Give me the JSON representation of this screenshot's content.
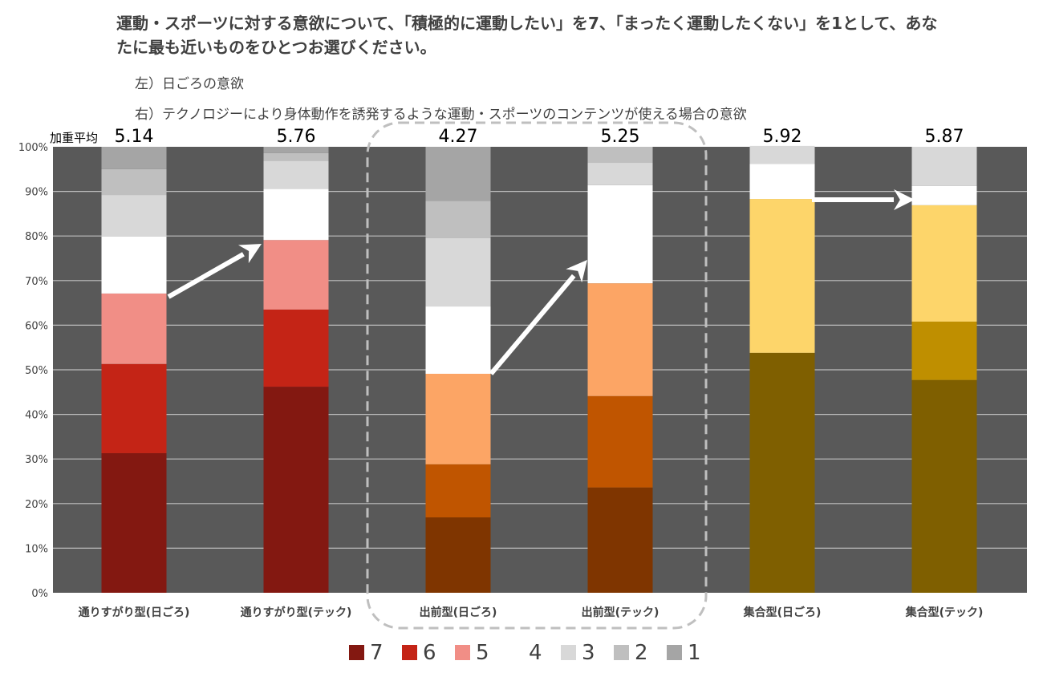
{
  "question": "運動・スポーツに対する意欲について、「積極的に運動したい」を7、「まったく運動したくない」を1として、あなたに最も近いものをひとつお選びください。",
  "notes": [
    "左）日ごろの意欲",
    "右）テクノロジーにより身体動作を誘発するような運動・スポーツのコンテンツが使える場合の意欲"
  ],
  "chart_data": {
    "type": "bar",
    "stacked": true,
    "percent": true,
    "avg_label": "加重平均",
    "categories": [
      "通りすがり型(日ごろ)",
      "通りすがり型(テック)",
      "出前型(日ごろ)",
      "出前型(テック)",
      "集合型(日ごろ)",
      "集合型(テック)"
    ],
    "weighted_avg": [
      "5.14",
      "5.76",
      "4.27",
      "5.25",
      "5.92",
      "5.87"
    ],
    "series": [
      {
        "name": "7",
        "values": [
          31.3,
          46.2,
          16.9,
          23.6,
          53.8,
          47.7
        ]
      },
      {
        "name": "6",
        "values": [
          20.0,
          17.3,
          11.9,
          20.5,
          0.0,
          13.1
        ]
      },
      {
        "name": "5",
        "values": [
          15.8,
          15.6,
          20.3,
          25.3,
          34.5,
          26.1
        ]
      },
      {
        "name": "4",
        "values": [
          12.8,
          11.5,
          15.1,
          22.0,
          7.9,
          4.3
        ]
      },
      {
        "name": "3",
        "values": [
          9.3,
          6.3,
          15.3,
          5.0,
          4.0,
          8.8
        ]
      },
      {
        "name": "2",
        "values": [
          5.8,
          1.7,
          8.4,
          3.6,
          0.0,
          0.0
        ]
      },
      {
        "name": "1",
        "values": [
          5.0,
          1.4,
          12.1,
          0.0,
          0.0,
          0.0
        ]
      }
    ],
    "group_colors": [
      [
        "#831811",
        "#c42416",
        "#f18e86",
        "#ffffff",
        "#d8d8d8",
        "#bfbfbf",
        "#a5a5a5"
      ],
      [
        "#7f3500",
        "#c05500",
        "#fca565",
        "#ffffff",
        "#d8d8d8",
        "#bfbfbf",
        "#a5a5a5"
      ],
      [
        "#7f5f00",
        "#bf8f00",
        "#fdd56a",
        "#ffffff",
        "#d8d8d8",
        "#bfbfbf",
        "#a5a5a5"
      ]
    ],
    "legend_colors": [
      "#831811",
      "#c42416",
      "#f18e86",
      "#ffffff",
      "#d8d8d8",
      "#bfbfbf",
      "#a5a5a5"
    ],
    "ylim": [
      0,
      100
    ],
    "yticks": [
      "0%",
      "10%",
      "20%",
      "30%",
      "40%",
      "50%",
      "60%",
      "70%",
      "80%",
      "90%",
      "100%"
    ],
    "plot_bg": "#595959",
    "grid": true,
    "legend_position": "bottom"
  }
}
